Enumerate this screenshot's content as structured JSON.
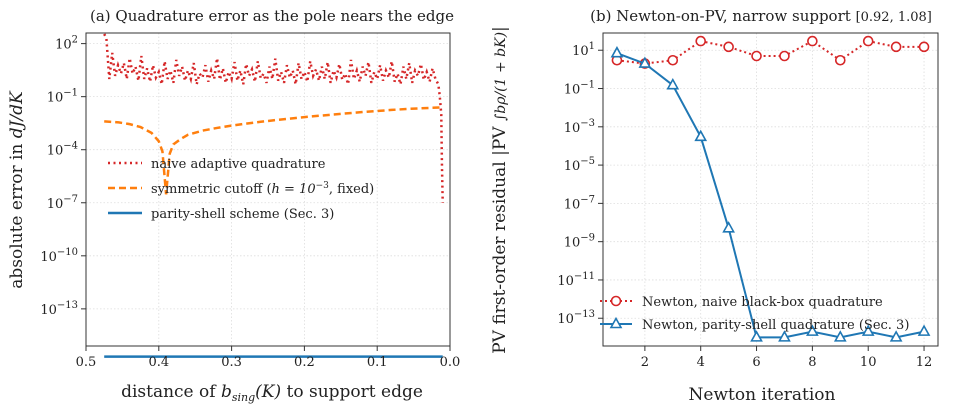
{
  "chart_data": [
    {
      "type": "line",
      "title": "(a) Quadrature error as the pole nears the edge",
      "xlabel": "distance of b_sing(K) to support edge",
      "ylabel": "absolute error in dJ/dK",
      "x_reversed": true,
      "xlim": [
        0.5,
        0.0
      ],
      "yscale": "log",
      "ylim": [
        1e-16,
        1000.0
      ],
      "grid": true,
      "legend_position": "center-left",
      "xticks": [
        "0.5",
        "0.4",
        "0.3",
        "0.2",
        "0.1",
        "0.0"
      ],
      "yticks": [
        "10^2",
        "10^-1",
        "10^-4",
        "10^-7",
        "10^-10",
        "10^-13"
      ],
      "series": [
        {
          "name": "naive adaptive quadrature",
          "color": "#d62728",
          "style": "dotted",
          "points": [
            [
              0.475,
              0.0
            ],
            [
              0.472,
              200.0
            ],
            [
              0.468,
              1.0
            ],
            [
              0.464,
              30.0
            ],
            [
              0.46,
              1.5
            ],
            [
              0.456,
              6.0
            ],
            [
              0.452,
              2.0
            ],
            [
              0.448,
              8.0
            ],
            [
              0.444,
              1.0
            ],
            [
              0.44,
              15.0
            ],
            [
              0.436,
              2.0
            ],
            [
              0.432,
              5.0
            ],
            [
              0.428,
              0.8
            ],
            [
              0.424,
              20.0
            ],
            [
              0.42,
              1.0
            ],
            [
              0.416,
              4.0
            ],
            [
              0.412,
              0.7
            ],
            [
              0.408,
              6.0
            ],
            [
              0.404,
              1.2
            ],
            [
              0.4,
              2.5
            ],
            [
              0.396,
              0.5
            ],
            [
              0.392,
              10.0
            ],
            [
              0.388,
              1.0
            ],
            [
              0.384,
              3.0
            ],
            [
              0.38,
              0.6
            ],
            [
              0.376,
              12.0
            ],
            [
              0.372,
              1.5
            ],
            [
              0.368,
              5.0
            ],
            [
              0.364,
              0.8
            ],
            [
              0.36,
              3.0
            ],
            [
              0.356,
              1.0
            ],
            [
              0.352,
              8.0
            ],
            [
              0.348,
              0.5
            ],
            [
              0.344,
              2.0
            ],
            [
              0.34,
              1.2
            ],
            [
              0.336,
              6.0
            ],
            [
              0.332,
              0.7
            ],
            [
              0.328,
              3.0
            ],
            [
              0.324,
              1.0
            ],
            [
              0.32,
              15.0
            ],
            [
              0.316,
              0.9
            ],
            [
              0.312,
              4.0
            ],
            [
              0.308,
              0.6
            ],
            [
              0.304,
              2.5
            ],
            [
              0.3,
              1.0
            ],
            [
              0.296,
              9.0
            ],
            [
              0.292,
              0.8
            ],
            [
              0.288,
              3.0
            ],
            [
              0.284,
              0.5
            ],
            [
              0.28,
              7.0
            ],
            [
              0.276,
              1.5
            ],
            [
              0.272,
              3.5
            ],
            [
              0.268,
              0.7
            ],
            [
              0.264,
              10.0
            ],
            [
              0.26,
              1.1
            ],
            [
              0.256,
              2.0
            ],
            [
              0.252,
              0.6
            ],
            [
              0.248,
              5.0
            ],
            [
              0.244,
              1.0
            ],
            [
              0.24,
              14.0
            ],
            [
              0.236,
              0.8
            ],
            [
              0.232,
              2.5
            ],
            [
              0.228,
              0.6
            ],
            [
              0.224,
              6.0
            ],
            [
              0.22,
              1.2
            ],
            [
              0.216,
              3.0
            ],
            [
              0.212,
              0.5
            ],
            [
              0.208,
              8.0
            ],
            [
              0.204,
              1.0
            ],
            [
              0.2,
              2.5
            ],
            [
              0.196,
              0.7
            ],
            [
              0.192,
              10.0
            ],
            [
              0.188,
              1.5
            ],
            [
              0.184,
              3.5
            ],
            [
              0.18,
              0.8
            ],
            [
              0.176,
              5.0
            ],
            [
              0.172,
              1.0
            ],
            [
              0.168,
              9.0
            ],
            [
              0.164,
              0.6
            ],
            [
              0.16,
              3.0
            ],
            [
              0.156,
              1.2
            ],
            [
              0.152,
              7.0
            ],
            [
              0.148,
              0.9
            ],
            [
              0.144,
              2.0
            ],
            [
              0.14,
              0.5
            ],
            [
              0.136,
              12.0
            ],
            [
              0.132,
              1.0
            ],
            [
              0.128,
              3.0
            ],
            [
              0.124,
              0.7
            ],
            [
              0.12,
              5.0
            ],
            [
              0.116,
              1.5
            ],
            [
              0.112,
              9.0
            ],
            [
              0.108,
              0.6
            ],
            [
              0.104,
              2.5
            ],
            [
              0.1,
              1.0
            ],
            [
              0.096,
              6.0
            ],
            [
              0.092,
              0.8
            ],
            [
              0.088,
              3.0
            ],
            [
              0.084,
              1.2
            ],
            [
              0.08,
              10.0
            ],
            [
              0.076,
              0.7
            ],
            [
              0.072,
              2.0
            ],
            [
              0.068,
              0.5
            ],
            [
              0.064,
              5.0
            ],
            [
              0.06,
              1.0
            ],
            [
              0.056,
              8.0
            ],
            [
              0.052,
              0.6
            ],
            [
              0.048,
              3.0
            ],
            [
              0.044,
              1.5
            ],
            [
              0.04,
              7.0
            ],
            [
              0.036,
              0.9
            ],
            [
              0.032,
              2.5
            ],
            [
              0.028,
              0.7
            ],
            [
              0.024,
              4.0
            ],
            [
              0.02,
              1.0
            ],
            [
              0.016,
              0.5
            ],
            [
              0.014,
              0.1
            ],
            [
              0.012,
              0.01
            ],
            [
              0.011,
              1e-05
            ],
            [
              0.01,
              1e-07
            ]
          ]
        },
        {
          "name": "symmetric cutoff (h = 10^-3, fixed)",
          "color": "#ff7f0e",
          "style": "dashed",
          "points": [
            [
              0.475,
              0.004
            ],
            [
              0.455,
              0.0035
            ],
            [
              0.44,
              0.0028
            ],
            [
              0.425,
              0.0019
            ],
            [
              0.41,
              0.0009
            ],
            [
              0.4,
              0.0003
            ],
            [
              0.395,
              8e-05
            ],
            [
              0.39,
              3e-07
            ],
            [
              0.385,
              6e-05
            ],
            [
              0.38,
              0.0002
            ],
            [
              0.37,
              0.0004
            ],
            [
              0.36,
              0.0007
            ],
            [
              0.34,
              0.0012
            ],
            [
              0.32,
              0.0017
            ],
            [
              0.3,
              0.0023
            ],
            [
              0.28,
              0.003
            ],
            [
              0.26,
              0.0038
            ],
            [
              0.24,
              0.0047
            ],
            [
              0.22,
              0.0057
            ],
            [
              0.2,
              0.007
            ],
            [
              0.18,
              0.0083
            ],
            [
              0.16,
              0.0098
            ],
            [
              0.14,
              0.0115
            ],
            [
              0.12,
              0.0135
            ],
            [
              0.1,
              0.0155
            ],
            [
              0.08,
              0.0178
            ],
            [
              0.06,
              0.02
            ],
            [
              0.04,
              0.022
            ],
            [
              0.02,
              0.024
            ],
            [
              0.01,
              0.025
            ]
          ]
        },
        {
          "name": "parity-shell scheme (Sec. 3)",
          "color": "#1f77b4",
          "style": "solid",
          "points": [
            [
              0.475,
              2e-16
            ],
            [
              0.01,
              2e-16
            ]
          ]
        }
      ]
    },
    {
      "type": "line",
      "title_text": "(b) Newton-on-PV, narrow support ",
      "title_math": "[0.92, 1.08]",
      "xlabel": "Newton iteration",
      "ylabel_text": "PV first-order residual |PV ",
      "ylabel_math": "∫bρ/(1 + bK)",
      "ylabel_end": "|",
      "xlim": [
        0.5,
        12.5
      ],
      "yscale": "log",
      "ylim": [
        1e-15,
        100.0
      ],
      "grid": true,
      "legend_position": "bottom-left",
      "xticks": [
        "2",
        "4",
        "6",
        "8",
        "10",
        "12"
      ],
      "yticks": [
        "10^1",
        "10^-1",
        "10^-3",
        "10^-5",
        "10^-7",
        "10^-9",
        "10^-11",
        "10^-13"
      ],
      "series": [
        {
          "name": "Newton, naive black-box quadrature",
          "color": "#d62728",
          "style": "dotted",
          "marker": "circle",
          "x": [
            1,
            2,
            3,
            4,
            5,
            6,
            7,
            8,
            9,
            10,
            11,
            12
          ],
          "y": [
            3.0,
            2.0,
            3.0,
            30.0,
            15.0,
            5.0,
            5.0,
            30.0,
            3.0,
            30.0,
            15.0,
            15.0
          ]
        },
        {
          "name": "Newton, parity-shell quadrature (Sec. 3)",
          "color": "#1f77b4",
          "style": "solid",
          "marker": "triangle",
          "x": [
            1,
            2,
            3,
            4,
            5,
            6,
            7,
            8,
            9,
            10,
            11,
            12
          ],
          "y": [
            7.0,
            2.0,
            0.15,
            0.0003,
            5e-09,
            1e-14,
            1e-14,
            2e-14,
            1e-14,
            2e-14,
            1e-14,
            2e-14
          ]
        }
      ]
    }
  ],
  "panel_a": {
    "title": "(a) Quadrature error as the pole nears the edge",
    "xlabel_pre": "distance of ",
    "xlabel_math": "b",
    "xlabel_sub": "sing",
    "xlabel_post_math": "(K)",
    "xlabel_post": " to support edge",
    "ylabel_pre": "absolute error in ",
    "ylabel_math": "dJ/dK",
    "legend": {
      "naive": "naive adaptive quadrature",
      "cutoff_pre": "symmetric cutoff (",
      "cutoff_math": "h = 10",
      "cutoff_exp": "−3",
      "cutoff_post": ", fixed)",
      "parity": "parity-shell scheme (Sec. 3)"
    }
  },
  "panel_b": {
    "title_text": "(b) Newton-on-PV, narrow support ",
    "title_math": "[0.92, 1.08]",
    "xlabel": "Newton iteration",
    "ylabel_text": "PV first-order residual |PV ",
    "ylabel_math": "∫bρ/(1 + bK)",
    "ylabel_end": "|",
    "legend": {
      "naive": "Newton, naive black-box quadrature",
      "parity": "Newton, parity-shell quadrature (Sec. 3)"
    }
  }
}
